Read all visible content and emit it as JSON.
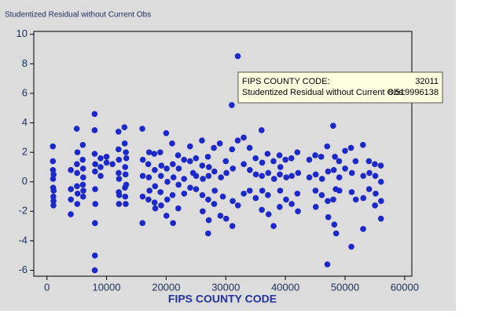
{
  "chart_data": {
    "type": "scatter",
    "title": "Studentized Residual without Current Obs",
    "x_label": "FIPS COUNTY CODE",
    "color": "#1c28c8",
    "xlim": [
      -2200,
      61200
    ],
    "ylim": [
      -6.4,
      10.2
    ],
    "xticks": [
      0,
      10000,
      20000,
      30000,
      40000,
      50000,
      60000
    ],
    "yticks": [
      -6,
      -4,
      -2,
      0,
      2,
      4,
      6,
      8,
      10
    ],
    "x": [
      1001,
      1003,
      1015,
      1033,
      1051,
      1073,
      1089,
      1101,
      1117,
      1127,
      4003,
      4013,
      4019,
      4021,
      5001,
      5031,
      5045,
      5071,
      5093,
      5119,
      5143,
      6001,
      6019,
      6037,
      6059,
      6071,
      6085,
      6111,
      8001,
      8005,
      8013,
      8031,
      8041,
      8059,
      8069,
      8087,
      8101,
      8123,
      9001,
      9003,
      9009,
      10001,
      10003,
      11001,
      12001,
      12011,
      12031,
      12057,
      12071,
      12086,
      12099,
      12127,
      13001,
      13051,
      13089,
      13121,
      13135,
      13185,
      13215,
      13245,
      13289,
      13313,
      16001,
      16027,
      16055,
      16069,
      16083,
      17001,
      17031,
      17097,
      17143,
      17201,
      18001,
      18057,
      18089,
      18141,
      18177,
      19001,
      19049,
      19113,
      19153,
      19193,
      20001,
      20045,
      20091,
      20173,
      20209,
      21001,
      21067,
      21111,
      21151,
      21227,
      22001,
      22033,
      22071,
      22109,
      23001,
      23005,
      23019,
      24003,
      24005,
      24031,
      24510,
      25001,
      25017,
      25025,
      26001,
      26049,
      26081,
      26125,
      26163,
      27001,
      27037,
      27053,
      27109,
      27137,
      27171,
      28001,
      28049,
      28087,
      28145,
      29001,
      29095,
      29189,
      29510,
      30001,
      30063,
      30111,
      31001,
      31055,
      31109,
      31157,
      31185,
      32003,
      32011,
      32031,
      33001,
      33011,
      33015,
      34001,
      34013,
      34031,
      35001,
      35013,
      35049,
      36001,
      36047,
      36061,
      36103,
      36119,
      37001,
      37063,
      37119,
      37183,
      38001,
      38017,
      38101,
      39001,
      39035,
      39061,
      39113,
      39153,
      40001,
      40109,
      40143,
      41001,
      41051,
      41067,
      42001,
      42003,
      42101,
      42133,
      44001,
      44007,
      45001,
      45045,
      45079,
      45091,
      46001,
      46099,
      46137,
      47001,
      47037,
      47093,
      47157,
      47189,
      48001,
      48029,
      48113,
      48201,
      48303,
      48439,
      48507,
      49001,
      49035,
      49049,
      50001,
      50007,
      51001,
      51059,
      51107,
      51153,
      51760,
      51810,
      53001,
      53033,
      53053,
      53063,
      54001,
      54039,
      54081,
      55001,
      55025,
      55079,
      55133,
      56001,
      56021,
      56025,
      56041
    ],
    "values": [
      2.4,
      1.4,
      0.8,
      0.2,
      -0.4,
      -1.0,
      -1.6,
      -1.3,
      0.5,
      -0.6,
      -2.2,
      0.8,
      -0.5,
      -1.2,
      3.6,
      1.2,
      -0.3,
      0.6,
      -1.5,
      2.0,
      -0.8,
      1.5,
      2.5,
      -0.2,
      0.9,
      -1.0,
      0.3,
      -0.6,
      4.6,
      3.5,
      1.9,
      -6.0,
      -5.0,
      -2.8,
      0.7,
      -0.5,
      1.2,
      -1.5,
      1.0,
      1.6,
      0.4,
      1.3,
      1.7,
      1.2,
      3.4,
      2.2,
      0.6,
      -0.7,
      1.5,
      -1.5,
      0.2,
      -0.9,
      3.7,
      2.6,
      -0.4,
      1.0,
      -1.0,
      0.5,
      -1.5,
      2.0,
      -0.2,
      1.6,
      3.6,
      -2.8,
      -1.0,
      0.4,
      1.5,
      1.2,
      -1.2,
      0.3,
      2.0,
      -0.6,
      1.9,
      -1.4,
      0.8,
      -0.3,
      -1.8,
      2.0,
      -0.7,
      0.4,
      -1.6,
      1.1,
      3.3,
      -2.3,
      0.9,
      -1.2,
      0.0,
      2.6,
      -0.9,
      1.2,
      -2.8,
      0.3,
      1.8,
      -1.8,
      -0.2,
      0.9,
      1.5,
      0.2,
      -0.8,
      2.4,
      1.4,
      -0.4,
      0.6,
      1.6,
      -0.5,
      0.4,
      2.8,
      1.1,
      -0.9,
      -2.0,
      0.2,
      1.7,
      -3.5,
      -1.2,
      0.4,
      -2.6,
      1.0,
      2.3,
      -1.5,
      0.7,
      -0.6,
      2.6,
      -2.3,
      0.3,
      -1.0,
      1.4,
      -2.5,
      0.6,
      5.2,
      2.2,
      -3.0,
      -1.3,
      0.9,
      2.8,
      8.52,
      -1.6,
      3.0,
      -0.8,
      1.2,
      2.3,
      -0.6,
      0.8,
      1.6,
      -1.1,
      0.5,
      3.5,
      -1.9,
      0.4,
      1.3,
      -0.6,
      1.9,
      -0.9,
      0.6,
      -2.2,
      1.4,
      -3.0,
      0.2,
      1.8,
      -1.7,
      0.5,
      -0.6,
      1.0,
      1.5,
      -1.2,
      0.3,
      1.6,
      -1.5,
      0.4,
      2.0,
      -0.8,
      -2.0,
      0.6,
      1.5,
      0.3,
      1.8,
      -0.6,
      0.5,
      -1.7,
      1.7,
      -0.9,
      0.2,
      2.4,
      -5.6,
      -1.3,
      0.7,
      -2.4,
      3.8,
      -1.2,
      0.8,
      -2.9,
      1.7,
      -0.5,
      -3.5,
      1.4,
      0.3,
      -0.6,
      2.1,
      0.9,
      2.3,
      -4.4,
      -0.7,
      0.6,
      1.4,
      -1.2,
      2.5,
      -3.2,
      0.4,
      -1.1,
      1.4,
      -0.5,
      0.6,
      1.2,
      -1.6,
      0.4,
      -0.8,
      1.1,
      -2.5,
      0.0,
      -1.3
    ]
  },
  "tooltip": [
    {
      "label": "FIPS COUNTY CODE:",
      "value": "32011"
    },
    {
      "label": "Studentized Residual without Current Obs:",
      "value": "8.519996138"
    }
  ]
}
